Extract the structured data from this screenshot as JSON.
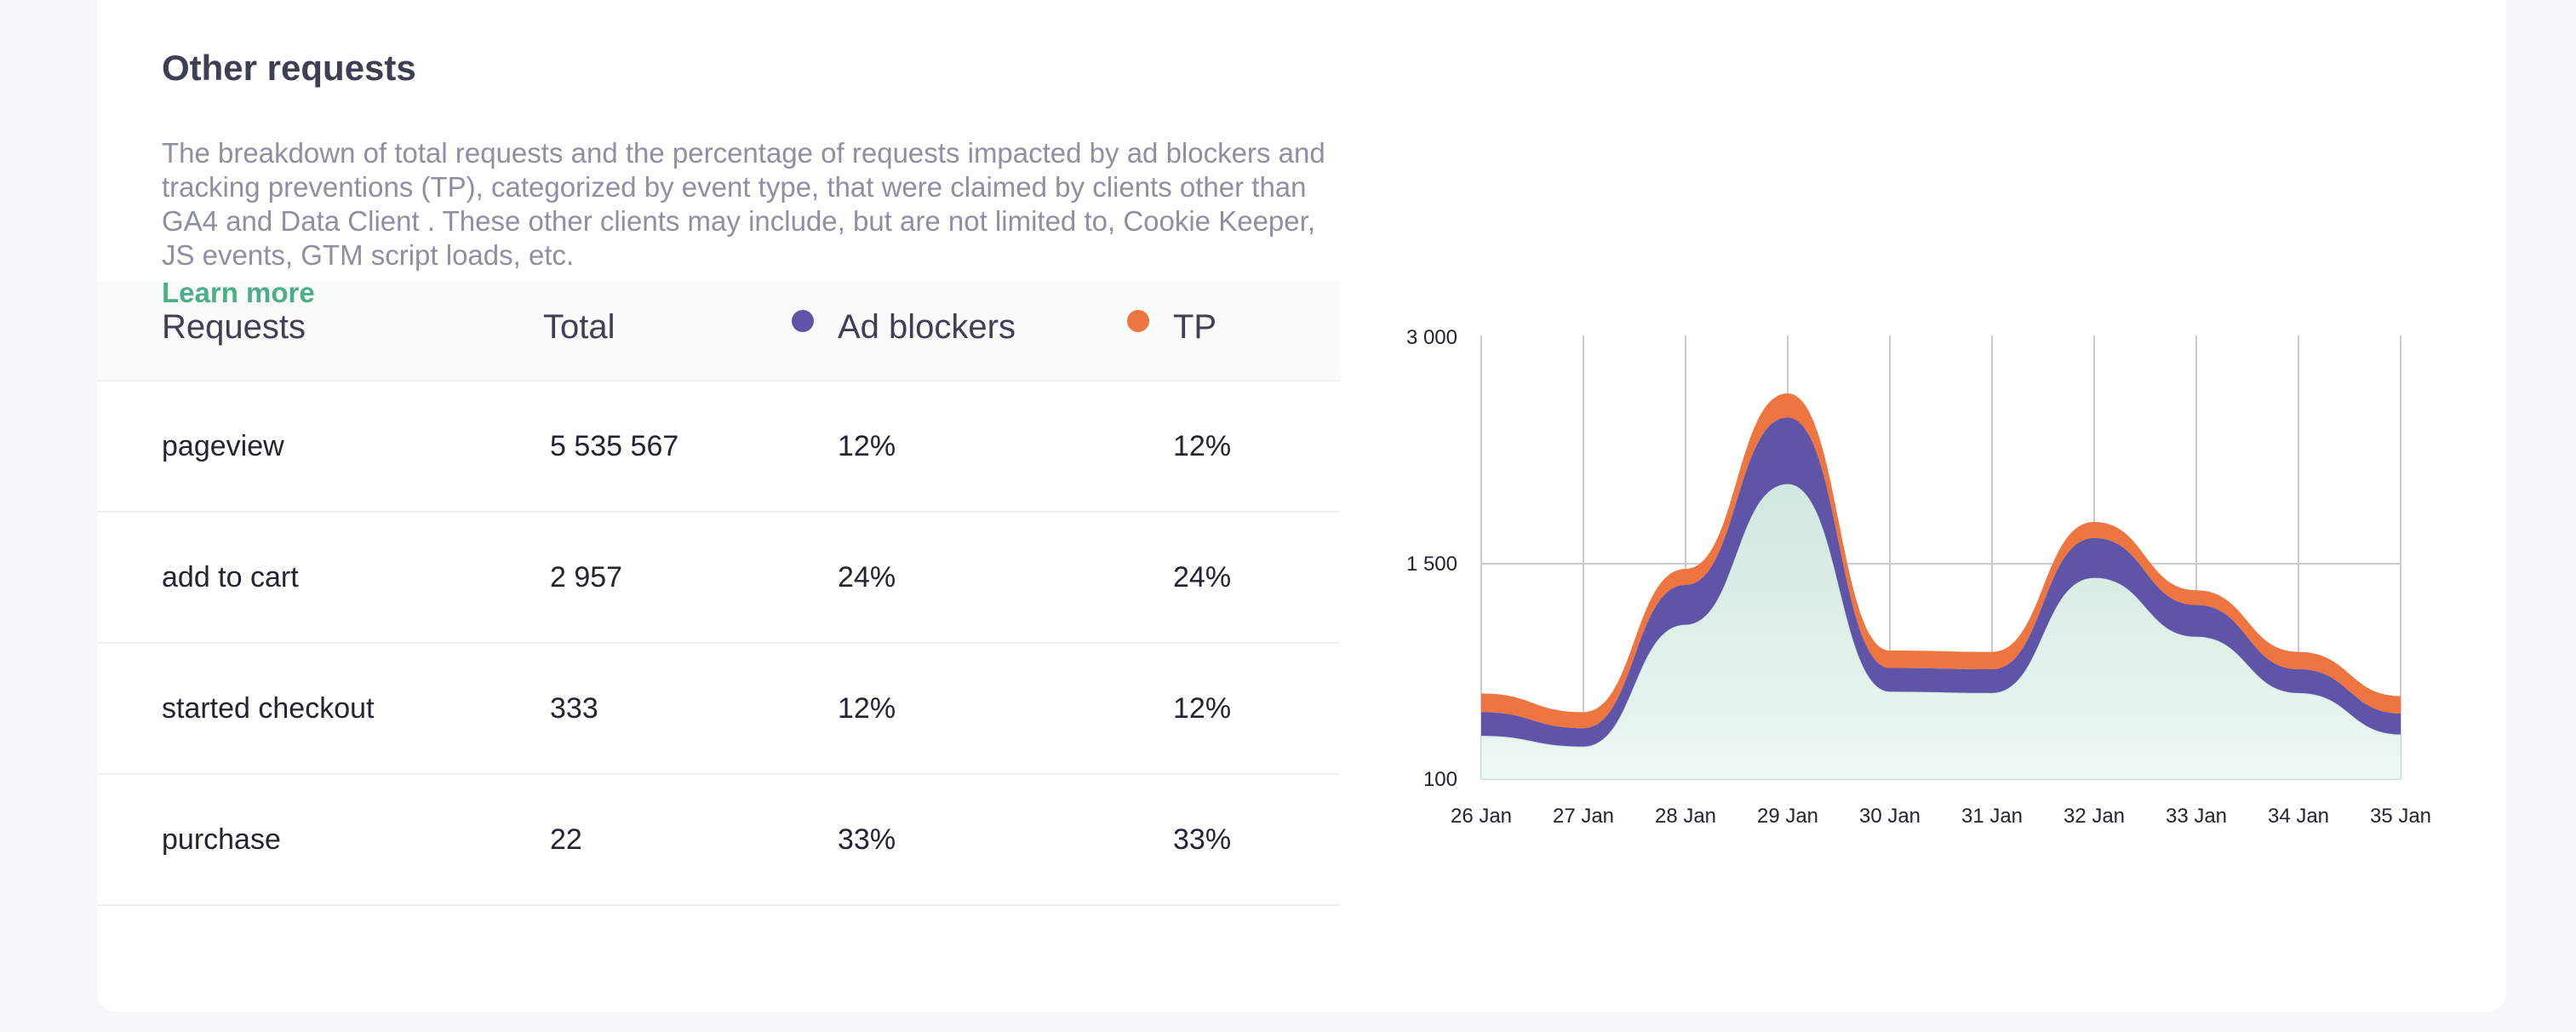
{
  "section": {
    "title": "Other requests",
    "description": "The breakdown of total requests and the percentage of requests impacted by ad blockers and tracking preventions (TP), categorized by event type, that were claimed by clients other than GA4 and Data Client . These other clients may include, but are not limited to, Cookie Keeper, JS events, GTM script loads, etc.",
    "learn_more": "Learn more"
  },
  "table": {
    "headers": {
      "requests": "Requests",
      "total": "Total",
      "ad_blockers": "Ad blockers",
      "tp": "TP"
    },
    "rows": [
      {
        "request": "pageview",
        "total": "5 535 567",
        "ad_blockers": "12%",
        "tp": "12%"
      },
      {
        "request": "add to cart",
        "total": "2 957",
        "ad_blockers": "24%",
        "tp": "24%"
      },
      {
        "request": "started checkout",
        "total": "333",
        "ad_blockers": "12%",
        "tp": "12%"
      },
      {
        "request": "purchase",
        "total": "22",
        "ad_blockers": "33%",
        "tp": "33%"
      }
    ]
  },
  "colors": {
    "ad_blockers": "#5f55a8",
    "tp": "#ee7440",
    "base_area": "#d9eee6",
    "link": "#4cae84",
    "grid": "#c8cbd2"
  },
  "chart_data": {
    "type": "area",
    "x": [
      "26 Jan",
      "27 Jan",
      "28 Jan",
      "29 Jan",
      "30 Jan",
      "31 Jan",
      "32 Jan",
      "33 Jan",
      "34 Jan",
      "35 Jan"
    ],
    "y_ticks": [
      "100",
      "1 500",
      "3 000"
    ],
    "grid": true,
    "stacked": true,
    "series": [
      {
        "key": "base",
        "values": [
          320,
          240,
          1150,
          2200,
          650,
          640,
          1500,
          1060,
          640,
          330
        ],
        "color": "#d9eee6"
      },
      {
        "key": "ad_blockers",
        "values": [
          180,
          140,
          300,
          500,
          180,
          180,
          300,
          240,
          180,
          160
        ],
        "color": "#5f55a8"
      },
      {
        "key": "tp",
        "values": [
          140,
          120,
          120,
          180,
          130,
          130,
          120,
          110,
          130,
          130
        ],
        "color": "#ee7440"
      }
    ]
  }
}
